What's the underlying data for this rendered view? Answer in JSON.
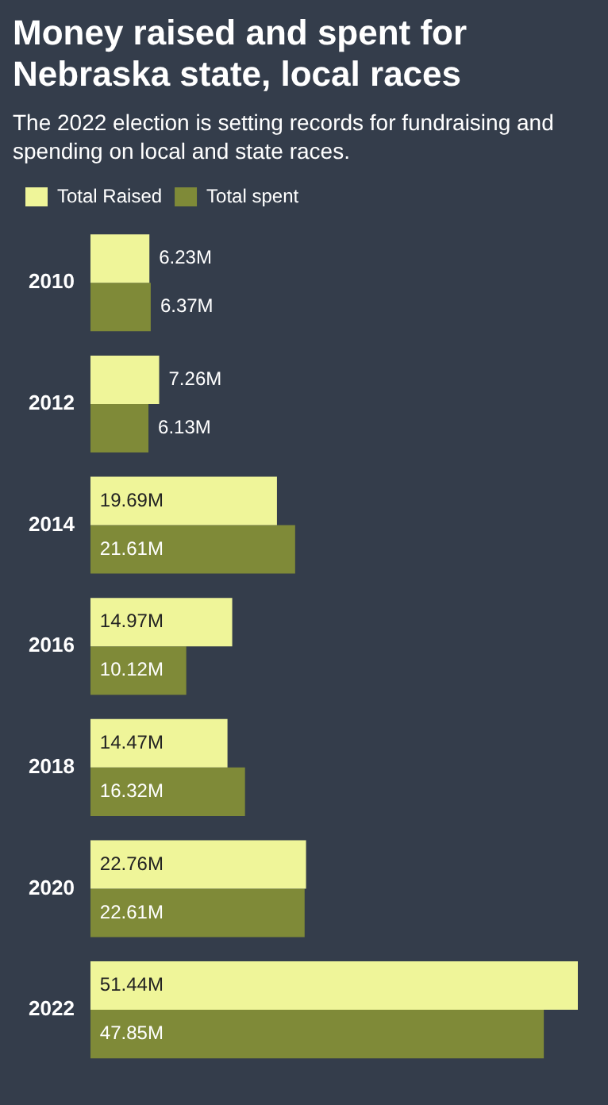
{
  "chart_data": {
    "type": "bar",
    "orientation": "horizontal",
    "title": "Money raised and spent for Nebraska state, local races",
    "subtitle": "The 2022 election is setting records for fundraising and spending on local and state races.",
    "categories": [
      "2010",
      "2012",
      "2014",
      "2016",
      "2018",
      "2020",
      "2022"
    ],
    "series": [
      {
        "name": "Total Raised",
        "color": "#eff599",
        "values": [
          6.23,
          7.26,
          19.69,
          14.97,
          14.47,
          22.76,
          51.44
        ],
        "value_labels": [
          "6.23M",
          "7.26M",
          "19.69M",
          "14.97M",
          "14.47M",
          "22.76M",
          "51.44M"
        ]
      },
      {
        "name": "Total spent",
        "color": "#7f8a38",
        "values": [
          6.37,
          6.13,
          21.61,
          10.12,
          16.32,
          22.61,
          47.85
        ],
        "value_labels": [
          "6.37M",
          "6.13M",
          "21.61M",
          "10.12M",
          "16.32M",
          "22.61M",
          "47.85M"
        ]
      }
    ],
    "legend": "top left",
    "grid": false
  }
}
